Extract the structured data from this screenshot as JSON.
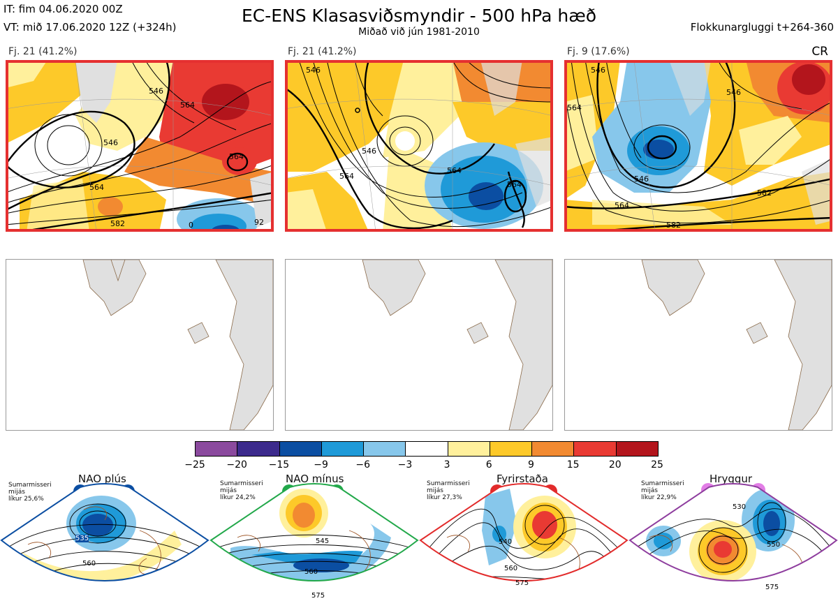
{
  "header": {
    "it": "IT: fim 04.06.2020 00Z",
    "vt": "VT: mið 17.06.2020 12Z  (+324h)",
    "title": "EC-ENS Klasasviðsmyndir - 500 hPa hæð",
    "subtitle": "Miðað við jún 1981-2010",
    "window": "Flokkunargluggi t+264-360"
  },
  "panels": [
    {
      "label": "Fj. 21 (41.2%)",
      "tag": "",
      "contours": [
        "546",
        "564",
        "564",
        "564",
        "582",
        "546",
        "92",
        "0"
      ]
    },
    {
      "label": "Fj. 21 (41.2%)",
      "tag": "",
      "contours": [
        "546",
        "546",
        "564",
        "564",
        "564"
      ]
    },
    {
      "label": "Fj. 9 (17.6%)",
      "tag": "CR",
      "contours": [
        "546",
        "546",
        "564",
        "564",
        "546",
        "582",
        "582"
      ]
    }
  ],
  "colorbar": {
    "colors": [
      "#8b4a9e",
      "#3c2a8c",
      "#0b4ea2",
      "#1f9ad8",
      "#87c7eb",
      "#ffffff",
      "#fff09c",
      "#fdc929",
      "#f28a31",
      "#e93a33",
      "#b3151c"
    ],
    "ticks": [
      "−25",
      "−20",
      "−15",
      "−9",
      "−6",
      "−3",
      "3",
      "6",
      "9",
      "15",
      "20",
      "25"
    ]
  },
  "regimes": [
    {
      "name": "NAO plús",
      "note": [
        "Sumarmisseri",
        "mijás",
        "líkur 25,6%"
      ],
      "color": "#0b4ea2",
      "contours": [
        "535",
        "560"
      ]
    },
    {
      "name": "NAO mínus",
      "note": [
        "Sumarmisseri",
        "mijás",
        "líkur 24,2%"
      ],
      "color": "#22a84a",
      "contours": [
        "545",
        "560",
        "575"
      ]
    },
    {
      "name": "Fyrirstaða",
      "note": [
        "Sumarmisseri",
        "mijás",
        "líkur 27,3%"
      ],
      "color": "#e22b2b",
      "contours": [
        "540",
        "560",
        "575"
      ]
    },
    {
      "name": "Hryggur",
      "note": [
        "Sumarmisseri",
        "mijás",
        "líkur 22,9%"
      ],
      "color": "#e27ee6",
      "contours": [
        "530",
        "550",
        "575"
      ]
    }
  ]
}
